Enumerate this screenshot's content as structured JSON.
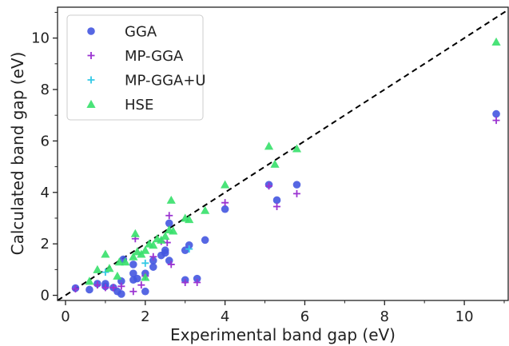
{
  "chart_data": {
    "type": "scatter",
    "title": "",
    "xlabel": "Experimental band gap (eV)",
    "ylabel": "Calculated band gap (eV)",
    "xlim": [
      -0.2,
      11.1
    ],
    "ylim": [
      -0.2,
      11.2
    ],
    "xticks": [
      0,
      2,
      4,
      6,
      8,
      10
    ],
    "yticks": [
      0,
      2,
      4,
      6,
      8,
      10
    ],
    "grid": false,
    "legend_position": "top-left",
    "reference_line": {
      "style": "dashed",
      "color": "#000000",
      "from": [
        -0.2,
        -0.2
      ],
      "to": [
        11.1,
        11.1
      ]
    },
    "series": [
      {
        "name": "GGA",
        "marker": "circle",
        "color": "#4457e0",
        "points": [
          [
            0.25,
            0.28
          ],
          [
            0.6,
            0.22
          ],
          [
            0.8,
            0.45
          ],
          [
            1.0,
            0.35
          ],
          [
            1.0,
            0.45
          ],
          [
            1.2,
            0.3
          ],
          [
            1.3,
            0.15
          ],
          [
            1.4,
            0.05
          ],
          [
            1.4,
            0.55
          ],
          [
            1.45,
            1.4
          ],
          [
            1.7,
            0.6
          ],
          [
            1.7,
            0.85
          ],
          [
            1.7,
            1.2
          ],
          [
            1.8,
            0.65
          ],
          [
            2.0,
            0.15
          ],
          [
            2.0,
            0.85
          ],
          [
            2.2,
            1.1
          ],
          [
            2.2,
            1.35
          ],
          [
            2.4,
            1.55
          ],
          [
            2.5,
            1.65
          ],
          [
            2.5,
            1.75
          ],
          [
            2.6,
            1.35
          ],
          [
            2.6,
            2.8
          ],
          [
            3.0,
            0.6
          ],
          [
            3.0,
            1.75
          ],
          [
            3.1,
            1.95
          ],
          [
            3.3,
            0.65
          ],
          [
            3.5,
            2.15
          ],
          [
            4.0,
            3.35
          ],
          [
            5.1,
            4.3
          ],
          [
            5.3,
            3.7
          ],
          [
            5.8,
            4.3
          ],
          [
            10.8,
            7.05
          ]
        ]
      },
      {
        "name": "MP-GGA",
        "marker": "plus",
        "color": "#9b33d1",
        "points": [
          [
            0.25,
            0.25
          ],
          [
            0.8,
            0.4
          ],
          [
            1.0,
            0.3
          ],
          [
            1.2,
            0.3
          ],
          [
            1.4,
            0.35
          ],
          [
            1.7,
            0.15
          ],
          [
            1.75,
            2.2
          ],
          [
            1.9,
            0.4
          ],
          [
            2.0,
            0.75
          ],
          [
            2.2,
            1.5
          ],
          [
            2.4,
            2.1
          ],
          [
            2.55,
            2.05
          ],
          [
            2.6,
            3.1
          ],
          [
            2.65,
            1.2
          ],
          [
            3.0,
            0.5
          ],
          [
            3.3,
            0.5
          ],
          [
            4.0,
            3.6
          ],
          [
            5.1,
            4.25
          ],
          [
            5.3,
            3.45
          ],
          [
            5.8,
            3.95
          ],
          [
            10.8,
            6.8
          ]
        ]
      },
      {
        "name": "MP-GGA+U",
        "marker": "plus",
        "color": "#33c9e6",
        "points": [
          [
            1.0,
            0.9
          ],
          [
            2.0,
            1.25
          ],
          [
            3.1,
            1.8
          ]
        ]
      },
      {
        "name": "HSE",
        "marker": "triangle",
        "color": "#36e06a",
        "points": [
          [
            0.6,
            0.55
          ],
          [
            0.8,
            1.0
          ],
          [
            1.0,
            1.6
          ],
          [
            1.1,
            1.05
          ],
          [
            1.3,
            0.75
          ],
          [
            1.35,
            1.3
          ],
          [
            1.5,
            1.3
          ],
          [
            1.7,
            1.5
          ],
          [
            1.75,
            2.4
          ],
          [
            1.8,
            1.7
          ],
          [
            1.9,
            1.6
          ],
          [
            2.0,
            0.7
          ],
          [
            2.0,
            1.75
          ],
          [
            2.1,
            2.0
          ],
          [
            2.2,
            1.95
          ],
          [
            2.3,
            2.2
          ],
          [
            2.4,
            2.15
          ],
          [
            2.5,
            2.3
          ],
          [
            2.6,
            2.55
          ],
          [
            2.65,
            3.7
          ],
          [
            2.7,
            2.5
          ],
          [
            3.0,
            3.0
          ],
          [
            3.1,
            2.95
          ],
          [
            3.5,
            3.3
          ],
          [
            4.0,
            4.3
          ],
          [
            5.1,
            5.8
          ],
          [
            5.25,
            5.1
          ],
          [
            5.8,
            5.7
          ],
          [
            10.8,
            9.85
          ]
        ]
      }
    ]
  }
}
